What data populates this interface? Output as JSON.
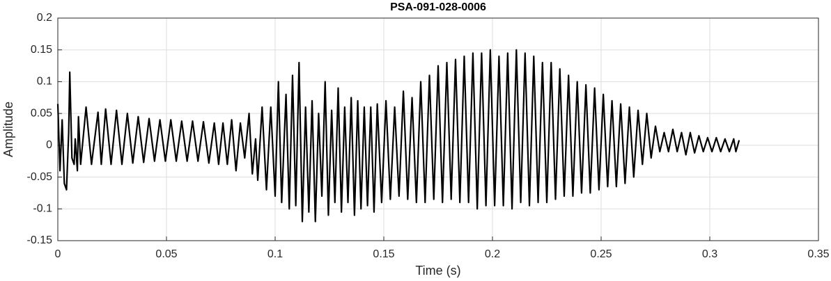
{
  "chart_data": {
    "type": "line",
    "title": "PSA-091-028-0006",
    "xlabel": "Time (s)",
    "ylabel": "Amplitude",
    "color": "#000000",
    "grid": true,
    "xlim": [
      0,
      0.35
    ],
    "xticks": [
      0,
      0.05,
      0.1,
      0.15,
      0.2,
      0.25,
      0.3,
      0.35
    ],
    "ylim": [
      -0.15,
      0.2
    ],
    "yticks": [
      -0.15,
      -0.1,
      -0.05,
      0,
      0.05,
      0.1,
      0.15,
      0.2
    ],
    "x": [
      0,
      0.001,
      0.002,
      0.003,
      0.004,
      0.005,
      0.0055,
      0.0065,
      0.0075,
      0.008,
      0.009,
      0.0095,
      0.0105,
      0.013,
      0.0155,
      0.0185,
      0.02,
      0.022,
      0.0245,
      0.027,
      0.0295,
      0.032,
      0.0345,
      0.037,
      0.0395,
      0.042,
      0.0445,
      0.047,
      0.0495,
      0.052,
      0.0545,
      0.057,
      0.0595,
      0.062,
      0.0645,
      0.067,
      0.0695,
      0.072,
      0.074,
      0.076,
      0.078,
      0.08,
      0.082,
      0.084,
      0.086,
      0.088,
      0.0895,
      0.091,
      0.092,
      0.094,
      0.096,
      0.098,
      0.1,
      0.1015,
      0.103,
      0.105,
      0.1065,
      0.108,
      0.1095,
      0.111,
      0.1125,
      0.114,
      0.1155,
      0.117,
      0.1185,
      0.12,
      0.1215,
      0.123,
      0.1245,
      0.126,
      0.1275,
      0.129,
      0.1305,
      0.132,
      0.1335,
      0.135,
      0.1365,
      0.138,
      0.1395,
      0.141,
      0.1425,
      0.144,
      0.1455,
      0.147,
      0.149,
      0.151,
      0.153,
      0.155,
      0.157,
      0.159,
      0.161,
      0.163,
      0.165,
      0.167,
      0.169,
      0.171,
      0.173,
      0.175,
      0.177,
      0.179,
      0.181,
      0.183,
      0.185,
      0.187,
      0.189,
      0.191,
      0.193,
      0.195,
      0.197,
      0.199,
      0.201,
      0.203,
      0.205,
      0.207,
      0.209,
      0.211,
      0.213,
      0.215,
      0.217,
      0.219,
      0.221,
      0.223,
      0.225,
      0.227,
      0.229,
      0.231,
      0.233,
      0.235,
      0.237,
      0.239,
      0.241,
      0.243,
      0.245,
      0.247,
      0.249,
      0.251,
      0.253,
      0.255,
      0.257,
      0.259,
      0.261,
      0.263,
      0.265,
      0.267,
      0.269,
      0.271,
      0.273,
      0.275,
      0.277,
      0.279,
      0.281,
      0.283,
      0.285,
      0.287,
      0.289,
      0.291,
      0.293,
      0.295,
      0.297,
      0.299,
      0.301,
      0.303,
      0.305,
      0.307,
      0.309,
      0.311,
      0.312,
      0.3135
    ],
    "y": [
      0.065,
      -0.04,
      0.04,
      -0.06,
      -0.07,
      0.02,
      0.115,
      -0.02,
      -0.03,
      0.01,
      -0.04,
      0.045,
      -0.03,
      0.06,
      -0.03,
      0.052,
      -0.03,
      0.057,
      -0.03,
      0.055,
      -0.03,
      0.05,
      -0.028,
      0.045,
      -0.027,
      0.042,
      -0.025,
      0.04,
      -0.025,
      0.04,
      -0.025,
      0.038,
      -0.025,
      0.038,
      -0.025,
      0.037,
      -0.028,
      0.035,
      -0.03,
      0.035,
      -0.03,
      0.04,
      -0.04,
      0.035,
      -0.02,
      0.05,
      -0.045,
      0.01,
      -0.055,
      0.06,
      -0.07,
      0.06,
      -0.08,
      0.1,
      -0.09,
      0.08,
      -0.1,
      0.11,
      -0.095,
      0.13,
      -0.12,
      0.06,
      -0.105,
      0.07,
      -0.12,
      0.05,
      -0.08,
      0.1,
      -0.11,
      0.055,
      -0.09,
      0.09,
      -0.105,
      0.06,
      -0.09,
      0.075,
      -0.11,
      0.07,
      -0.1,
      0.06,
      -0.095,
      0.06,
      -0.105,
      0.065,
      -0.09,
      0.07,
      -0.085,
      0.06,
      -0.08,
      0.085,
      -0.085,
      0.075,
      -0.09,
      0.1,
      -0.09,
      0.11,
      -0.085,
      0.125,
      -0.09,
      0.13,
      -0.085,
      0.135,
      -0.09,
      0.14,
      -0.09,
      0.145,
      -0.1,
      0.145,
      -0.095,
      0.15,
      -0.095,
      0.14,
      -0.095,
      0.145,
      -0.1,
      0.15,
      -0.09,
      0.145,
      -0.095,
      0.14,
      -0.09,
      0.13,
      -0.09,
      0.13,
      -0.085,
      0.12,
      -0.08,
      0.11,
      -0.08,
      0.1,
      -0.075,
      0.095,
      -0.075,
      0.09,
      -0.07,
      0.08,
      -0.065,
      0.07,
      -0.065,
      0.065,
      -0.06,
      0.06,
      -0.05,
      0.055,
      -0.03,
      0.05,
      -0.02,
      0.03,
      -0.01,
      0.02,
      -0.01,
      0.025,
      -0.01,
      0.02,
      -0.015,
      0.02,
      -0.012,
      0.015,
      -0.01,
      0.012,
      -0.01,
      0.012,
      -0.01,
      0.01,
      -0.01,
      0.01,
      -0.01,
      0.008
    ]
  }
}
